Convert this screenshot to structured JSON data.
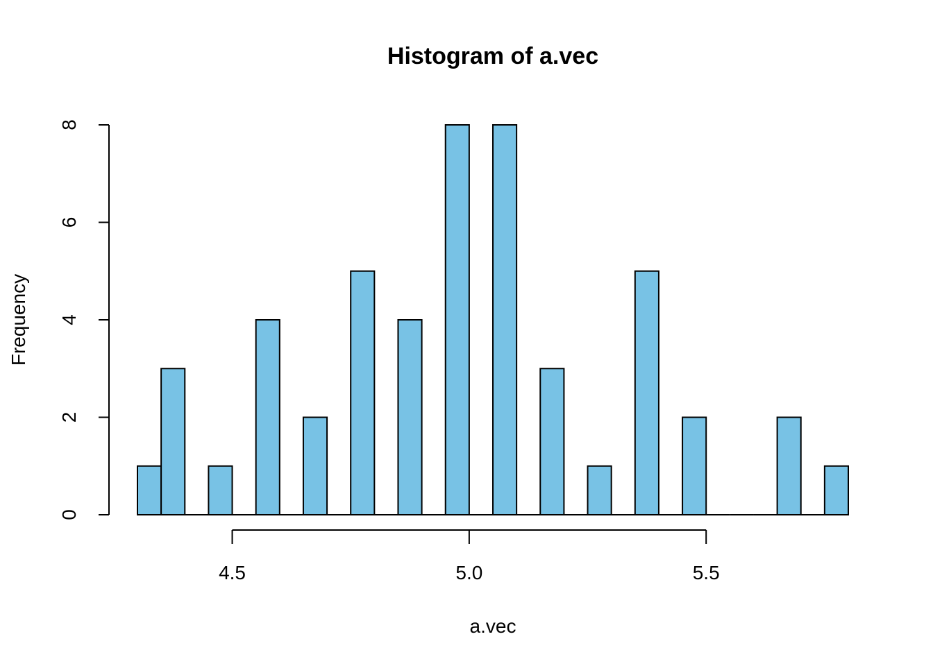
{
  "chart_data": {
    "type": "bar",
    "title": "Histogram of a.vec",
    "xlabel": "a.vec",
    "ylabel": "Frequency",
    "bar_color": "#78C2E5",
    "border_color": "#000000",
    "bin_width": 0.05,
    "bins": [
      {
        "x0": 4.3,
        "x1": 4.35,
        "count": 1
      },
      {
        "x0": 4.35,
        "x1": 4.4,
        "count": 3
      },
      {
        "x0": 4.4,
        "x1": 4.45,
        "count": 0
      },
      {
        "x0": 4.45,
        "x1": 4.5,
        "count": 1
      },
      {
        "x0": 4.5,
        "x1": 4.55,
        "count": 0
      },
      {
        "x0": 4.55,
        "x1": 4.6,
        "count": 4
      },
      {
        "x0": 4.6,
        "x1": 4.65,
        "count": 0
      },
      {
        "x0": 4.65,
        "x1": 4.7,
        "count": 2
      },
      {
        "x0": 4.7,
        "x1": 4.75,
        "count": 0
      },
      {
        "x0": 4.75,
        "x1": 4.8,
        "count": 5
      },
      {
        "x0": 4.8,
        "x1": 4.85,
        "count": 0
      },
      {
        "x0": 4.85,
        "x1": 4.9,
        "count": 4
      },
      {
        "x0": 4.9,
        "x1": 4.95,
        "count": 0
      },
      {
        "x0": 4.95,
        "x1": 5.0,
        "count": 8
      },
      {
        "x0": 5.0,
        "x1": 5.05,
        "count": 0
      },
      {
        "x0": 5.05,
        "x1": 5.1,
        "count": 8
      },
      {
        "x0": 5.1,
        "x1": 5.15,
        "count": 0
      },
      {
        "x0": 5.15,
        "x1": 5.2,
        "count": 3
      },
      {
        "x0": 5.2,
        "x1": 5.25,
        "count": 0
      },
      {
        "x0": 5.25,
        "x1": 5.3,
        "count": 1
      },
      {
        "x0": 5.3,
        "x1": 5.35,
        "count": 0
      },
      {
        "x0": 5.35,
        "x1": 5.4,
        "count": 5
      },
      {
        "x0": 5.4,
        "x1": 5.45,
        "count": 0
      },
      {
        "x0": 5.45,
        "x1": 5.5,
        "count": 2
      },
      {
        "x0": 5.5,
        "x1": 5.55,
        "count": 0
      },
      {
        "x0": 5.55,
        "x1": 5.6,
        "count": 0
      },
      {
        "x0": 5.6,
        "x1": 5.65,
        "count": 0
      },
      {
        "x0": 5.65,
        "x1": 5.7,
        "count": 2
      },
      {
        "x0": 5.7,
        "x1": 5.75,
        "count": 0
      },
      {
        "x0": 5.75,
        "x1": 5.8,
        "count": 1
      }
    ],
    "xlim": [
      4.3,
      5.8
    ],
    "ylim": [
      0,
      8
    ],
    "x_ticks": [
      4.5,
      5.0,
      5.5
    ],
    "x_tick_labels": [
      "4.5",
      "5.0",
      "5.5"
    ],
    "y_ticks": [
      0,
      2,
      4,
      6,
      8
    ],
    "y_tick_labels": [
      "0",
      "2",
      "4",
      "6",
      "8"
    ],
    "grid": false,
    "legend": "none"
  }
}
